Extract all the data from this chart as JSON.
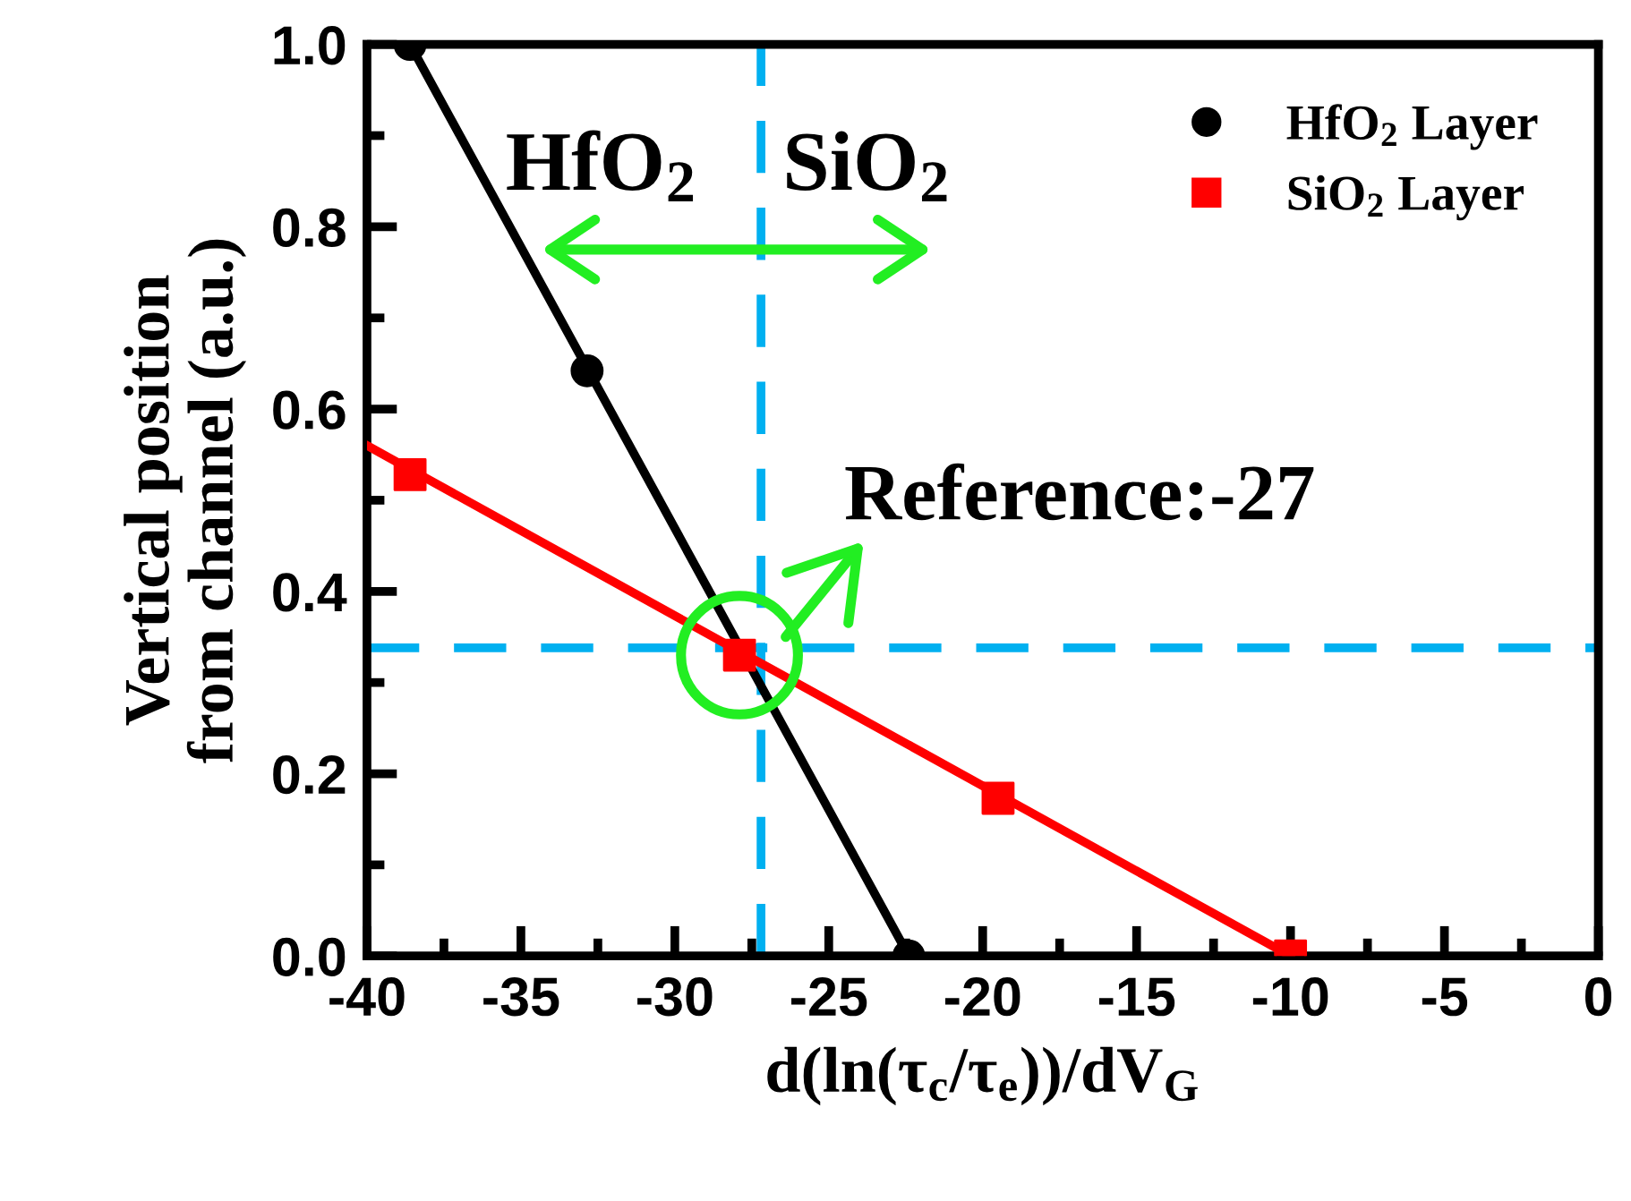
{
  "chart_data": {
    "type": "scatter",
    "xlabel": "d(ln(τ$_{c}$/τ$_{e}$))/dV$_{G}$",
    "ylabel": "Vertical position\nfrom channel (a.u.)",
    "series": [
      {
        "name": "HfO$_{2}$ Layer",
        "color": "#000000",
        "marker": "circle",
        "x": [
          -38.6,
          -32.85,
          -22.4
        ],
        "values": [
          1.0,
          0.642,
          0
        ]
      },
      {
        "name": "SiO$_{2}$ Layer",
        "color": "#ff0000",
        "marker": "square",
        "x": [
          -38.6,
          -27.9,
          -19.5,
          -10.0
        ],
        "values": [
          0.528,
          0.33,
          0.173,
          0
        ]
      },
      {
        "type": "line",
        "color": "#000000",
        "marker": "none",
        "x": [
          -38.6,
          -22.4
        ],
        "values": [
          1.0,
          0
        ]
      },
      {
        "type": "line",
        "color": "#ff0000",
        "marker": "none",
        "x": [
          -40,
          -10.0
        ],
        "values": [
          0.56,
          0
        ]
      }
    ],
    "xlim": [
      -40,
      0
    ],
    "xticks": [
      -40,
      {
        "value": -37.5,
        "label": null
      },
      -35,
      {
        "value": -32.5,
        "label": null
      },
      -30,
      {
        "value": -27.5,
        "label": null
      },
      -25,
      {
        "value": -22.5,
        "label": null
      },
      -20,
      {
        "value": -17.5,
        "label": null
      },
      -15,
      {
        "value": -12.5,
        "label": null
      },
      -10,
      {
        "value": -7.5,
        "label": null
      },
      -5,
      {
        "value": -2.5,
        "label": null
      },
      0
    ],
    "ylim": [
      0,
      1.0
    ],
    "yticks": [
      {
        "value": 0,
        "label": "0.0"
      },
      {
        "value": 0.1,
        "label": null
      },
      {
        "value": 0.2,
        "label": "0.2"
      },
      {
        "value": 0.3,
        "label": null
      },
      {
        "value": 0.4,
        "label": "0.4"
      },
      {
        "value": 0.5,
        "label": null
      },
      {
        "value": 0.6,
        "label": "0.6"
      },
      {
        "value": 0.7,
        "label": null
      },
      {
        "value": 0.8,
        "label": "0.8"
      },
      {
        "value": 0.9,
        "label": null
      },
      {
        "value": 1.0,
        "label": "1.0"
      }
    ],
    "ref_lines": [
      {
        "axis": "x",
        "value": -27.2,
        "color": "#00b0f0",
        "line_style": "dashed"
      },
      {
        "axis": "y",
        "value": 0.338,
        "color": "#00b0f0",
        "line_style": "dashed"
      }
    ],
    "annotations": [
      "HfO$_{2}$",
      "SiO$_{2}$",
      {
        "text": "Reference:-27",
        "x": -27.9,
        "y": 0.33
      }
    ],
    "legend": "top right",
    "grid": false
  }
}
